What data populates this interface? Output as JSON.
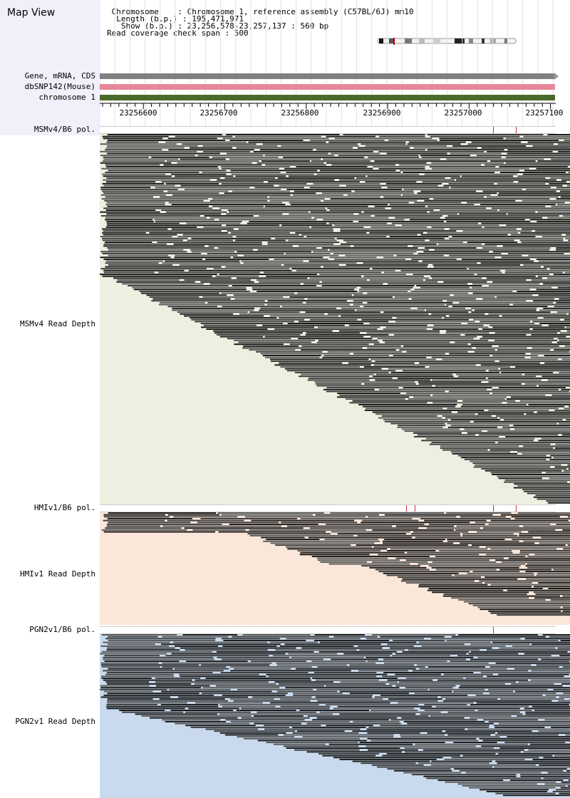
{
  "header": {
    "title": "Map View",
    "info_lines": [
      " Chromosome    : Chromosome 1, reference assembly (C57BL/6J) mm10",
      "  Length (b.p.) : 195,471,971",
      "   Show (b.p.) : 23,256,578-23,257,137 : 560 bp",
      "Read coverage check span : 500"
    ]
  },
  "tracks": {
    "gene": {
      "label": "Gene, mRNA, CDS",
      "color": "#808080"
    },
    "dbsnp": {
      "label": "dbSNP142(Mouse)",
      "color": "#e8889a"
    },
    "chromosome": {
      "label": "chromosome 1",
      "color": "#4a6a2a"
    }
  },
  "ruler": {
    "ticks": [
      "23256600",
      "23256700",
      "23256800",
      "23256900",
      "23257000",
      "23257100"
    ]
  },
  "samples": [
    {
      "pol_label": "MSMv4/B6 pol.",
      "depth_label": "MSMv4 Read Depth",
      "bg": "#ebf0e0"
    },
    {
      "pol_label": "HMIv1/B6 pol.",
      "depth_label": "HMIv1 Read Depth",
      "bg": "#fbe7da"
    },
    {
      "pol_label": "PGN2v1/B6 pol.",
      "depth_label": "PGN2v1 Read Depth",
      "bg": "#c9daee"
    }
  ]
}
